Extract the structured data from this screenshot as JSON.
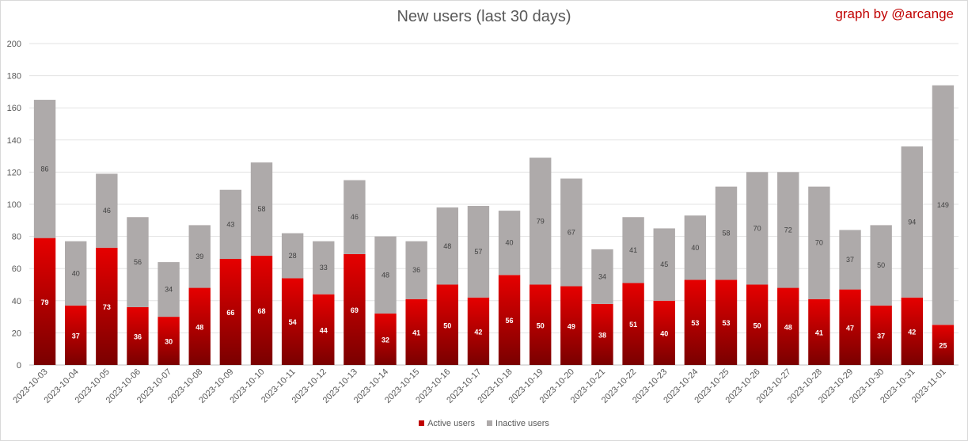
{
  "chart_data": {
    "type": "bar",
    "stacked": true,
    "title": "New users (last 30 days)",
    "credit": "graph by @arcange",
    "categories": [
      "2023-10-03",
      "2023-10-04",
      "2023-10-05",
      "2023-10-06",
      "2023-10-07",
      "2023-10-08",
      "2023-10-09",
      "2023-10-10",
      "2023-10-11",
      "2023-10-12",
      "2023-10-13",
      "2023-10-14",
      "2023-10-15",
      "2023-10-16",
      "2023-10-17",
      "2023-10-18",
      "2023-10-19",
      "2023-10-20",
      "2023-10-21",
      "2023-10-22",
      "2023-10-23",
      "2023-10-24",
      "2023-10-25",
      "2023-10-26",
      "2023-10-27",
      "2023-10-28",
      "2023-10-29",
      "2023-10-30",
      "2023-10-31",
      "2023-11-01"
    ],
    "series": [
      {
        "name": "Active users",
        "color": "#c00000",
        "values": [
          79,
          37,
          73,
          36,
          30,
          48,
          66,
          68,
          54,
          44,
          69,
          32,
          41,
          50,
          42,
          56,
          50,
          49,
          38,
          51,
          40,
          53,
          53,
          50,
          48,
          41,
          47,
          37,
          42,
          25
        ]
      },
      {
        "name": "Inactive users",
        "color": "#aeaaaa",
        "values": [
          86,
          40,
          46,
          56,
          34,
          39,
          43,
          58,
          28,
          33,
          46,
          48,
          36,
          48,
          57,
          40,
          79,
          67,
          34,
          41,
          45,
          40,
          58,
          70,
          72,
          70,
          37,
          50,
          94,
          149
        ]
      }
    ],
    "ylim": [
      0,
      200
    ],
    "yticks": [
      0,
      20,
      40,
      60,
      80,
      100,
      120,
      140,
      160,
      180,
      200
    ],
    "grid": true,
    "legend_position": "bottom"
  }
}
